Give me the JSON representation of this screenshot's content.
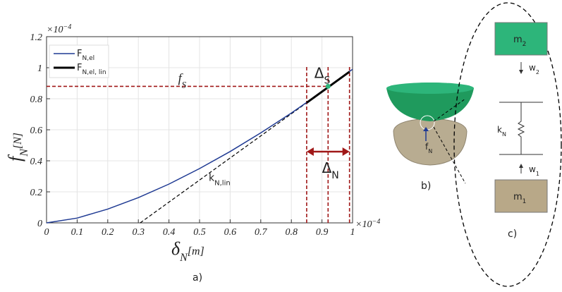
{
  "chart_data": {
    "type": "line",
    "ylabel": {
      "main": "f",
      "sub": "N",
      "unit": "[N]"
    },
    "xlabel": {
      "main": "δ",
      "sub": "N",
      "unit": "[m]"
    },
    "xmultiplier": {
      "base": "×10",
      "exp": "−4"
    },
    "ymultiplier": {
      "base": "×10",
      "exp": "−4"
    },
    "caption": "a)",
    "xlim": [
      0,
      1
    ],
    "ylim": [
      0,
      1.2
    ],
    "xticks": [
      0,
      0.1,
      0.2,
      0.3,
      0.4,
      0.5,
      0.6,
      0.7,
      0.8,
      0.9,
      1
    ],
    "yticks": [
      0,
      0.2,
      0.4,
      0.6,
      0.8,
      1,
      {
        "value": 1.2,
        "label": "1.2"
      }
    ],
    "grid": true,
    "legend": "upper left",
    "series": [
      {
        "name": "F",
        "subscript": "N,el",
        "color": "#1f3a93",
        "width": 1.5,
        "x": [
          0,
          0.1,
          0.2,
          0.3,
          0.4,
          0.5,
          0.6,
          0.7,
          0.8,
          0.9,
          1
        ],
        "values": [
          0,
          0.031,
          0.089,
          0.163,
          0.25,
          0.35,
          0.46,
          0.58,
          0.708,
          0.845,
          0.99
        ]
      },
      {
        "name": "F",
        "subscript": "N,el, lin",
        "color": "#000000",
        "width": 3,
        "x": [
          0.85,
          0.99
        ],
        "values": [
          0.774,
          0.974
        ]
      }
    ],
    "tangent": {
      "label": "k",
      "subscript": "N,lin",
      "x": [
        0.306,
        0.85
      ],
      "values": [
        0,
        0.774
      ]
    },
    "fs": {
      "label": "f",
      "subscript": "S",
      "value": 0.88,
      "x": 0.92
    },
    "verticals": [
      0.85,
      0.92,
      0.99
    ],
    "delta_s": {
      "label": "Δ",
      "subscript": "S"
    },
    "delta_n": {
      "label": "Δ",
      "subscript": "N",
      "x": [
        0.85,
        0.99
      ],
      "y": 0.459
    }
  },
  "diagram": {
    "caption_b": "b)",
    "caption_c": "c)",
    "fn": {
      "main": "f",
      "sub": "N"
    },
    "m2": {
      "main": "m",
      "sub": "2"
    },
    "w2": {
      "main": "w",
      "sub": "2"
    },
    "kn": {
      "main": "k",
      "sub": "N"
    },
    "w1": {
      "main": "w",
      "sub": "1"
    },
    "m1": {
      "main": "m",
      "sub": "1"
    }
  }
}
